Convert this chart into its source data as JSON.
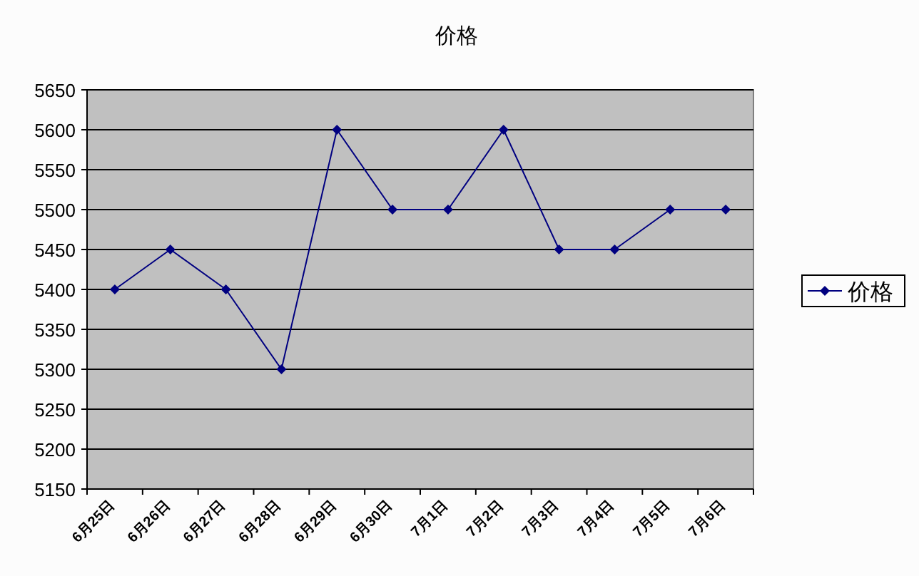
{
  "chart_data": {
    "type": "line",
    "title": "价格",
    "categories": [
      "6月25日",
      "6月26日",
      "6月27日",
      "6月28日",
      "6月29日",
      "6月30日",
      "7月1日",
      "7月2日",
      "7月3日",
      "7月4日",
      "7月5日",
      "7月6日"
    ],
    "series": [
      {
        "name": "价格",
        "color": "#000080",
        "values": [
          5400,
          5450,
          5400,
          5300,
          5600,
          5500,
          5500,
          5600,
          5450,
          5450,
          5500,
          5500
        ]
      }
    ],
    "ylim": [
      5150,
      5650
    ],
    "yticks": [
      5150,
      5200,
      5250,
      5300,
      5350,
      5400,
      5450,
      5500,
      5550,
      5600,
      5650
    ],
    "grid": "y",
    "legend": "right",
    "marker": "diamond",
    "line_style": "solid"
  }
}
